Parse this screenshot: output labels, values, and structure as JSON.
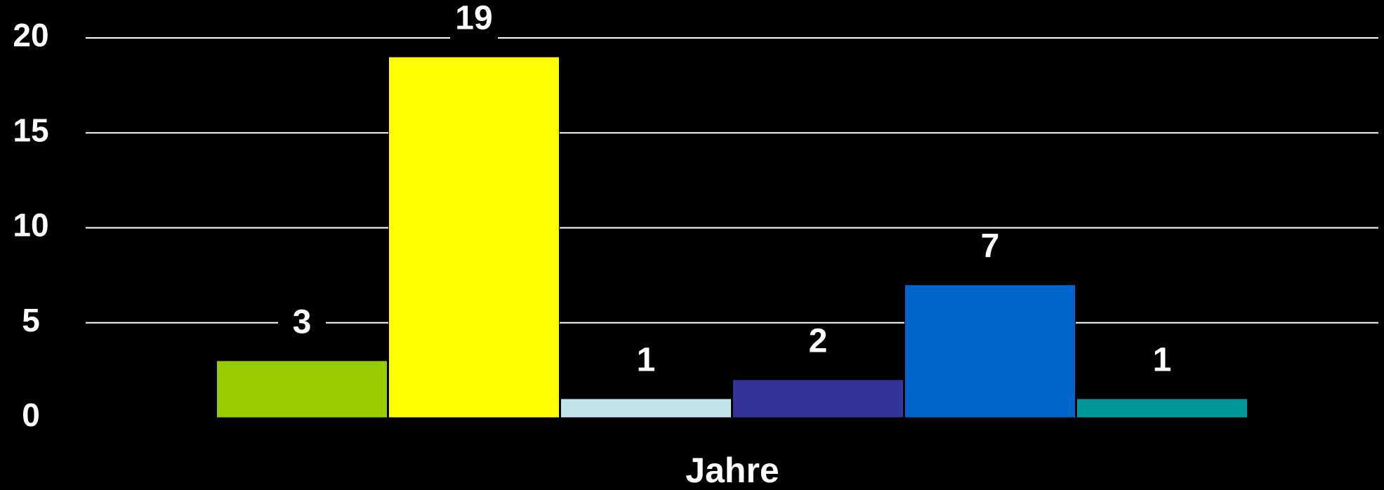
{
  "chart_data": {
    "type": "bar",
    "xlabel": "Jahre",
    "categories": [
      null,
      null,
      null,
      null,
      null,
      null
    ],
    "values": [
      3,
      19,
      1,
      2,
      7,
      1
    ],
    "colors": [
      "#99cc00",
      "#ffff00",
      "#c0e4ea",
      "#333399",
      "#0066cc",
      "#009999"
    ],
    "ylim": [
      0,
      20
    ],
    "yticks": [
      0,
      5,
      10,
      15,
      20
    ],
    "grid": true
  }
}
